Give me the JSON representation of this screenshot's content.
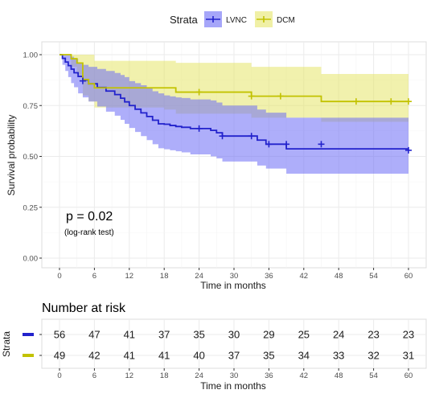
{
  "chart_data": {
    "type": "line",
    "subtype": "kaplan-meier",
    "ylabel": "Survival probability",
    "xlabel": "Time in months",
    "xlim": [
      0,
      60
    ],
    "ylim": [
      0,
      1
    ],
    "x_ticks": [
      0,
      6,
      12,
      18,
      24,
      30,
      36,
      42,
      48,
      54,
      60
    ],
    "y_ticks": [
      0.0,
      0.25,
      0.5,
      0.75,
      1.0
    ],
    "y_tick_labels": [
      "0.00",
      "0.25",
      "0.50",
      "0.75",
      "1.00"
    ],
    "grid": true,
    "legend": {
      "title": "Strata",
      "position": "top",
      "entries": [
        "LVNC",
        "DCM"
      ]
    },
    "annotation": {
      "text": "p = 0.02",
      "subtext": "(log-rank test)"
    },
    "series": [
      {
        "name": "LVNC",
        "color": "#2222cc",
        "fill_color": "#6b6bf5",
        "x": [
          0,
          0.5,
          1,
          1.5,
          2,
          2.5,
          3.2,
          4,
          5,
          6.5,
          8,
          9.5,
          10.5,
          11.2,
          12,
          13,
          14,
          15,
          16,
          17,
          18,
          19,
          20,
          21,
          22.5,
          26,
          27,
          28,
          34,
          35.5,
          39,
          60
        ],
        "y": [
          1.0,
          0.982,
          0.964,
          0.946,
          0.929,
          0.911,
          0.893,
          0.875,
          0.857,
          0.839,
          0.821,
          0.804,
          0.786,
          0.768,
          0.75,
          0.732,
          0.714,
          0.696,
          0.678,
          0.66,
          0.658,
          0.652,
          0.647,
          0.643,
          0.637,
          0.628,
          0.616,
          0.6,
          0.58,
          0.56,
          0.537,
          0.537
        ],
        "ci_upper": [
          1.0,
          1.0,
          1.0,
          1.0,
          0.99,
          0.98,
          0.96,
          0.95,
          0.94,
          0.93,
          0.92,
          0.91,
          0.9,
          0.89,
          0.87,
          0.86,
          0.85,
          0.835,
          0.82,
          0.81,
          0.8,
          0.795,
          0.79,
          0.787,
          0.78,
          0.775,
          0.765,
          0.75,
          0.73,
          0.715,
          0.69,
          0.69
        ],
        "ci_lower": [
          1.0,
          0.95,
          0.92,
          0.89,
          0.86,
          0.84,
          0.81,
          0.79,
          0.77,
          0.745,
          0.72,
          0.7,
          0.68,
          0.66,
          0.64,
          0.62,
          0.6,
          0.58,
          0.56,
          0.54,
          0.535,
          0.53,
          0.525,
          0.52,
          0.51,
          0.5,
          0.49,
          0.475,
          0.455,
          0.44,
          0.415,
          0.415
        ],
        "censor_x": [
          4,
          24,
          28,
          33,
          36,
          39,
          45,
          60
        ],
        "censor_y": [
          0.871,
          0.637,
          0.6,
          0.6,
          0.56,
          0.56,
          0.56,
          0.53
        ]
      },
      {
        "name": "DCM",
        "color": "#c2c200",
        "fill_color": "#e6e66a",
        "x": [
          0,
          2,
          3,
          4,
          5,
          6,
          18,
          20,
          33,
          45,
          60
        ],
        "y": [
          1.0,
          0.98,
          0.959,
          0.878,
          0.857,
          0.837,
          0.837,
          0.816,
          0.796,
          0.77,
          0.77
        ],
        "ci_upper": [
          1.0,
          1.0,
          1.0,
          1.0,
          1.0,
          0.97,
          0.97,
          0.96,
          0.94,
          0.905,
          0.905
        ],
        "ci_lower": [
          1.0,
          0.94,
          0.9,
          0.8,
          0.77,
          0.74,
          0.73,
          0.71,
          0.69,
          0.67,
          0.67
        ],
        "censor_x": [
          24,
          33,
          38,
          51,
          57,
          60
        ],
        "censor_y": [
          0.816,
          0.796,
          0.796,
          0.77,
          0.77,
          0.77
        ]
      }
    ]
  },
  "risk_table": {
    "title": "Number at risk",
    "ylabel": "Strata",
    "xlabel": "Time in months",
    "times": [
      0,
      6,
      12,
      18,
      24,
      30,
      36,
      42,
      48,
      54,
      60
    ],
    "rows": [
      {
        "name": "LVNC",
        "values": [
          56,
          47,
          41,
          37,
          35,
          30,
          29,
          25,
          24,
          23,
          23
        ]
      },
      {
        "name": "DCM",
        "values": [
          49,
          42,
          41,
          41,
          40,
          37,
          35,
          34,
          33,
          32,
          31
        ]
      }
    ]
  }
}
